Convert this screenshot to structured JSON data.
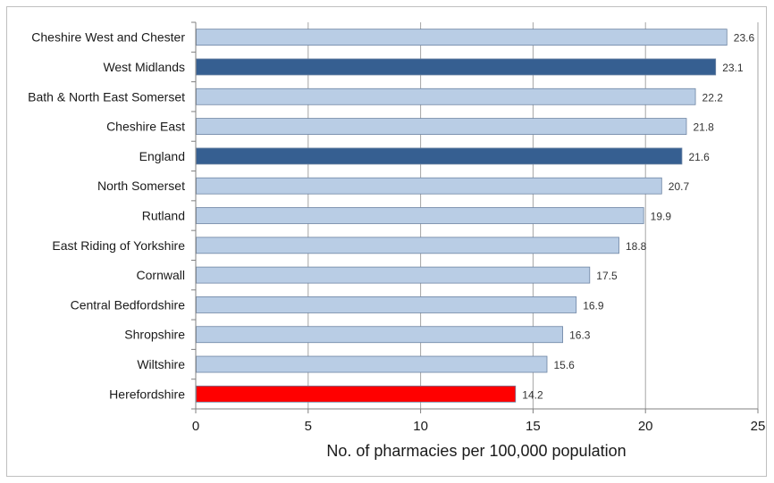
{
  "chart_data": {
    "type": "bar",
    "orientation": "horizontal",
    "title": "",
    "xlabel": "No. of pharmacies per 100,000 population",
    "ylabel": "",
    "xlim": [
      0,
      25
    ],
    "xticks": [
      0,
      5,
      10,
      15,
      20,
      25
    ],
    "grid": "vertical",
    "legend": "none",
    "categories": [
      "Cheshire West and Chester",
      "West Midlands",
      "Bath & North East Somerset",
      "Cheshire East",
      "England",
      "North Somerset",
      "Rutland",
      "East Riding of Yorkshire",
      "Cornwall",
      "Central Bedfordshire",
      "Shropshire",
      "Wiltshire",
      "Herefordshire"
    ],
    "values": [
      23.6,
      23.1,
      22.2,
      21.8,
      21.6,
      20.7,
      19.9,
      18.8,
      17.5,
      16.9,
      16.3,
      15.6,
      14.2
    ],
    "data_labels": [
      "23.6",
      "23.1",
      "22.2",
      "21.8",
      "21.6",
      "20.7",
      "19.9",
      "18.8",
      "17.5",
      "16.9",
      "16.3",
      "15.6",
      "14.2"
    ],
    "bar_colors": [
      "#b9cde5",
      "#365f91",
      "#b9cde5",
      "#b9cde5",
      "#365f91",
      "#b9cde5",
      "#b9cde5",
      "#b9cde5",
      "#b9cde5",
      "#b9cde5",
      "#b9cde5",
      "#b9cde5",
      "#ff0000"
    ],
    "colors": {
      "default": "#b9cde5",
      "benchmark": "#365f91",
      "highlight": "#ff0000",
      "gridline": "#a6a6a6"
    }
  }
}
